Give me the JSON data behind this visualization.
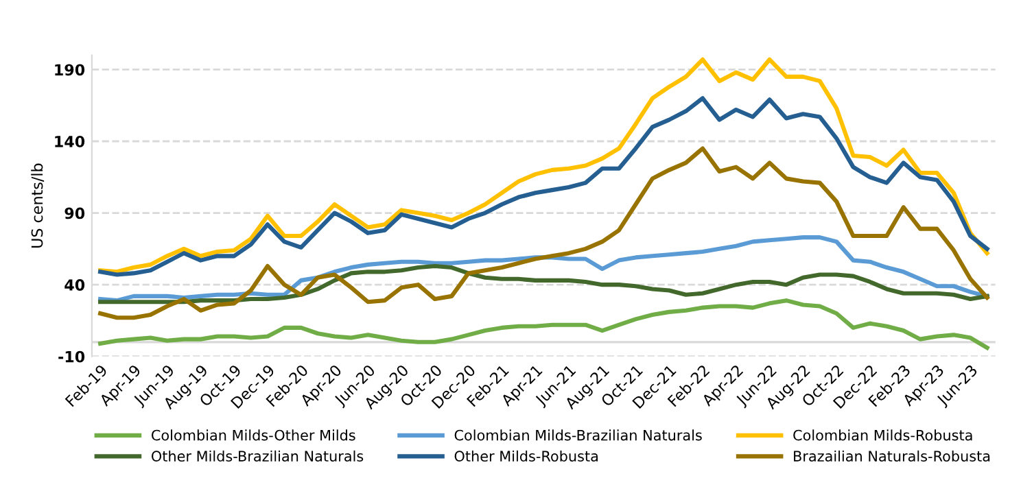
{
  "chart_data": {
    "type": "line",
    "ylabel": "US cents/lb",
    "categories": [
      "Feb-19",
      null,
      "Apr-19",
      null,
      "Jun-19",
      null,
      "Aug-19",
      null,
      "Oct-19",
      null,
      "Dec-19",
      null,
      "Feb-20",
      null,
      "Apr-20",
      null,
      "Jun-20",
      null,
      "Aug-20",
      null,
      "Oct-20",
      null,
      "Dec-20",
      null,
      "Feb-21",
      null,
      "Apr-21",
      null,
      "Jun-21",
      null,
      "Aug-21",
      null,
      "Oct-21",
      null,
      "Dec-21",
      null,
      "Feb-22",
      null,
      "Apr-22",
      null,
      "Jun-22",
      null,
      "Aug-22",
      null,
      "Oct-22",
      null,
      "Dec-22",
      null,
      "Feb-23",
      null,
      "Apr-23",
      null,
      "Jun-23",
      null
    ],
    "series": [
      {
        "name": "Colombian Milds-Other Milds",
        "color": "#70ad47",
        "values": [
          -1,
          1,
          2,
          3,
          1,
          2,
          2,
          4,
          4,
          3,
          4,
          10,
          10,
          6,
          4,
          3,
          5,
          3,
          1,
          0,
          0,
          2,
          5,
          8,
          10,
          11,
          11,
          12,
          12,
          12,
          8,
          12,
          16,
          19,
          21,
          22,
          24,
          25,
          25,
          24,
          27,
          29,
          26,
          25,
          20,
          10,
          13,
          11,
          8,
          2,
          4,
          5,
          3,
          -4
        ]
      },
      {
        "name": "Colombian Milds-Brazilian Naturals",
        "color": "#5b9bd5",
        "values": [
          30,
          29,
          32,
          32,
          32,
          31,
          32,
          33,
          33,
          34,
          33,
          33,
          43,
          45,
          49,
          52,
          54,
          55,
          56,
          56,
          55,
          55,
          56,
          57,
          57,
          58,
          59,
          59,
          58,
          58,
          51,
          57,
          59,
          60,
          61,
          62,
          63,
          65,
          67,
          70,
          71,
          72,
          73,
          73,
          70,
          57,
          56,
          52,
          49,
          44,
          39,
          39,
          35,
          32
        ]
      },
      {
        "name": "Colombian Milds-Robusta",
        "color": "#ffc000",
        "values": [
          50,
          49,
          52,
          54,
          60,
          65,
          60,
          63,
          64,
          72,
          88,
          74,
          74,
          84,
          96,
          88,
          80,
          82,
          92,
          90,
          88,
          85,
          90,
          96,
          104,
          112,
          117,
          120,
          121,
          123,
          128,
          135,
          152,
          170,
          178,
          185,
          197,
          182,
          188,
          183,
          197,
          185,
          185,
          182,
          163,
          130,
          129,
          123,
          134,
          118,
          118,
          104,
          76,
          62
        ]
      },
      {
        "name": "Other Milds-Brazilian Naturals",
        "color": "#43682b",
        "values": [
          28,
          28,
          28,
          28,
          28,
          28,
          29,
          29,
          29,
          30,
          30,
          31,
          33,
          37,
          43,
          48,
          49,
          49,
          50,
          52,
          53,
          52,
          48,
          45,
          44,
          44,
          43,
          43,
          43,
          42,
          40,
          40,
          39,
          37,
          36,
          33,
          34,
          37,
          40,
          42,
          42,
          40,
          45,
          47,
          47,
          46,
          42,
          37,
          34,
          34,
          34,
          33,
          30,
          32
        ]
      },
      {
        "name": "Other Milds-Robusta",
        "color": "#255e91",
        "values": [
          49,
          47,
          48,
          50,
          56,
          62,
          57,
          60,
          60,
          68,
          82,
          70,
          66,
          78,
          90,
          84,
          76,
          78,
          89,
          86,
          83,
          80,
          86,
          90,
          96,
          101,
          104,
          106,
          108,
          111,
          121,
          121,
          135,
          150,
          155,
          161,
          170,
          155,
          162,
          157,
          169,
          156,
          159,
          157,
          142,
          122,
          115,
          111,
          125,
          115,
          113,
          98,
          74,
          65
        ]
      },
      {
        "name": "Brazailian Naturals-Robusta",
        "color": "#997300",
        "values": [
          20,
          17,
          17,
          19,
          25,
          30,
          22,
          26,
          27,
          36,
          53,
          40,
          33,
          45,
          47,
          38,
          28,
          29,
          38,
          40,
          30,
          32,
          48,
          50,
          52,
          55,
          58,
          60,
          62,
          65,
          70,
          78,
          96,
          114,
          120,
          125,
          135,
          119,
          122,
          114,
          125,
          114,
          112,
          111,
          98,
          74,
          74,
          74,
          94,
          79,
          79,
          64,
          44,
          31
        ]
      }
    ],
    "ylim": [
      -10,
      200
    ],
    "yticks": [
      -10,
      40,
      90,
      140,
      190
    ],
    "grid": "y",
    "legend": "bottom",
    "marker": "none",
    "line_style": "solid",
    "ref_lines": [
      {
        "axis": "y",
        "value": 0,
        "color": "#d9d9d9",
        "line_style": "solid"
      }
    ]
  }
}
